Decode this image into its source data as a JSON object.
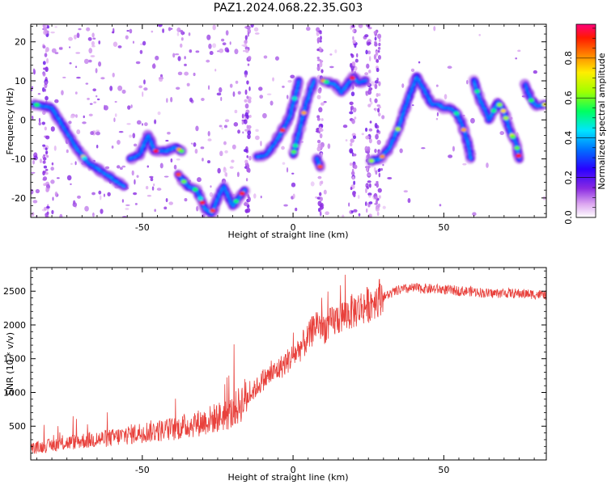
{
  "title": "PAZ1.2024.068.22.35.G03",
  "chart_data": [
    {
      "type": "heatmap",
      "xlabel": "Height of straight line (km)",
      "ylabel": "Frequency (Hz)",
      "xlim": [
        -87,
        84
      ],
      "ylim": [
        -25,
        24.5
      ],
      "x_ticks": [
        -50,
        0,
        50
      ],
      "y_ticks": [
        -20,
        -10,
        0,
        10,
        20
      ],
      "colorbar": {
        "label": "Normalized spectral amplitude",
        "range": [
          0.0,
          0.97
        ],
        "ticks": [
          0.0,
          0.2,
          0.4,
          0.6,
          0.8
        ]
      },
      "ridges": [
        {
          "points": [
            [
              -86,
              4
            ],
            [
              -80,
              3
            ],
            [
              -76,
              -2
            ],
            [
              -72,
              -7
            ],
            [
              -68,
              -11
            ],
            [
              -64,
              -13
            ],
            [
              -60,
              -15
            ],
            [
              -56,
              -17
            ]
          ]
        },
        {
          "points": [
            [
              -54,
              -10
            ],
            [
              -51,
              -9
            ],
            [
              -48,
              -4
            ],
            [
              -46,
              -8
            ],
            [
              -42,
              -8
            ],
            [
              -39,
              -7
            ],
            [
              -37,
              -8
            ]
          ]
        },
        {
          "points": [
            [
              -38,
              -14
            ],
            [
              -35,
              -17
            ],
            [
              -32,
              -18
            ],
            [
              -29,
              -23
            ],
            [
              -27,
              -24
            ],
            [
              -25,
              -20
            ],
            [
              -23,
              -17
            ],
            [
              -20,
              -22
            ],
            [
              -18,
              -20
            ],
            [
              -16,
              -18
            ]
          ]
        },
        {
          "points": [
            [
              -12,
              -9.5
            ],
            [
              -9,
              -9
            ],
            [
              -6,
              -6
            ],
            [
              -3,
              -2
            ],
            [
              -1,
              1
            ],
            [
              0,
              4
            ],
            [
              1,
              7
            ],
            [
              2,
              10
            ]
          ]
        },
        {
          "points": [
            [
              0,
              -9
            ],
            [
              2,
              -3
            ],
            [
              4,
              3
            ],
            [
              6,
              8
            ],
            [
              7,
              10
            ]
          ]
        },
        {
          "points": [
            [
              8,
              -10
            ],
            [
              9,
              -12
            ]
          ]
        },
        {
          "points": [
            [
              10,
              10
            ],
            [
              14,
              9
            ],
            [
              16,
              7
            ],
            [
              18,
              9
            ],
            [
              20,
              11
            ],
            [
              22,
              9.5
            ],
            [
              24,
              10
            ]
          ]
        },
        {
          "points": [
            [
              26,
              -10.5
            ],
            [
              29,
              -10
            ],
            [
              32,
              -7
            ],
            [
              35,
              -2
            ],
            [
              38,
              5
            ],
            [
              41,
              11
            ],
            [
              44,
              7
            ],
            [
              46,
              4
            ],
            [
              48,
              4
            ],
            [
              50,
              3
            ],
            [
              52,
              3
            ],
            [
              54,
              2
            ],
            [
              56,
              -1
            ],
            [
              58,
              -6
            ],
            [
              59,
              -10
            ]
          ]
        },
        {
          "points": [
            [
              60,
              10
            ],
            [
              62,
              5
            ],
            [
              64,
              2
            ],
            [
              65,
              0
            ],
            [
              67,
              3
            ],
            [
              68,
              4.5
            ],
            [
              70,
              2
            ],
            [
              72,
              -3
            ],
            [
              74,
              -6
            ],
            [
              75,
              -10
            ]
          ]
        },
        {
          "points": [
            [
              77,
              9
            ],
            [
              79,
              5
            ],
            [
              81,
              3.5
            ],
            [
              84,
              4
            ]
          ]
        }
      ]
    },
    {
      "type": "line",
      "xlabel": "Height of straight line (km)",
      "ylabel": "SNR (10 * v/v)",
      "xlim": [
        -87,
        84
      ],
      "ylim": [
        0,
        2850
      ],
      "x_ticks": [
        -50,
        0,
        50
      ],
      "y_ticks": [
        500,
        1000,
        1500,
        2000,
        2500
      ],
      "series": [
        {
          "color": "#e8413c",
          "x": [
            -87,
            -80,
            -70,
            -60,
            -50,
            -40,
            -30,
            -20,
            -15,
            -10,
            -5,
            0,
            5,
            8,
            10,
            12,
            15,
            20,
            25,
            30,
            35,
            40,
            45,
            50,
            55,
            60,
            65,
            70,
            75,
            80,
            84
          ],
          "y": [
            150,
            200,
            260,
            300,
            380,
            420,
            520,
            650,
            900,
            1150,
            1300,
            1500,
            1750,
            2000,
            1900,
            1950,
            2050,
            2150,
            2250,
            2400,
            2500,
            2530,
            2520,
            2510,
            2490,
            2480,
            2450,
            2460,
            2450,
            2440,
            2430
          ]
        }
      ]
    }
  ]
}
